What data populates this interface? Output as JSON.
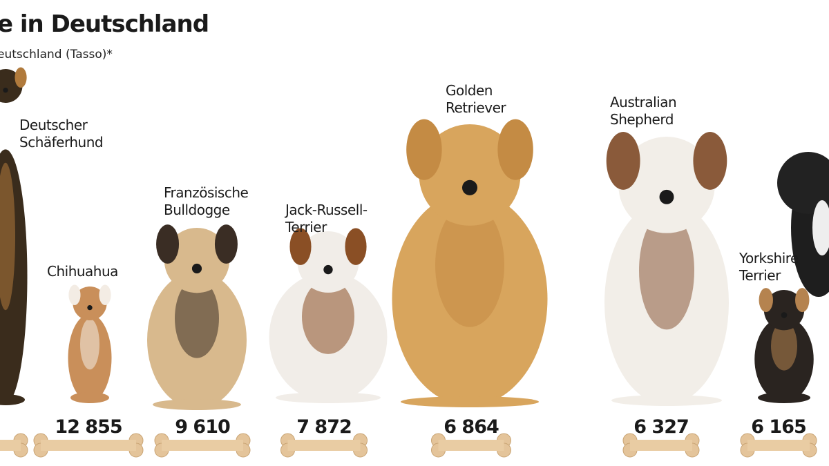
{
  "header": {
    "title": "e in Deutschland",
    "subtitle": "eutschland (Tasso)*"
  },
  "items": [
    {
      "label": [
        "Deutscher",
        "Schäferhund"
      ]
    },
    {
      "label": [
        "Chihuahua"
      ],
      "value": "12 855"
    },
    {
      "label": [
        "Französische",
        "Bulldogge"
      ],
      "value": "9 610"
    },
    {
      "label": [
        "Jack-Russell-",
        "Terrier"
      ],
      "value": "7 872"
    },
    {
      "label": [
        "Golden",
        "Retriever"
      ],
      "value": "6 864"
    },
    {
      "label": [
        "Australian",
        "Shepherd"
      ],
      "value": "6 327"
    },
    {
      "label": [
        "Yorkshire",
        "Terrier"
      ],
      "value": "6 165"
    }
  ]
}
